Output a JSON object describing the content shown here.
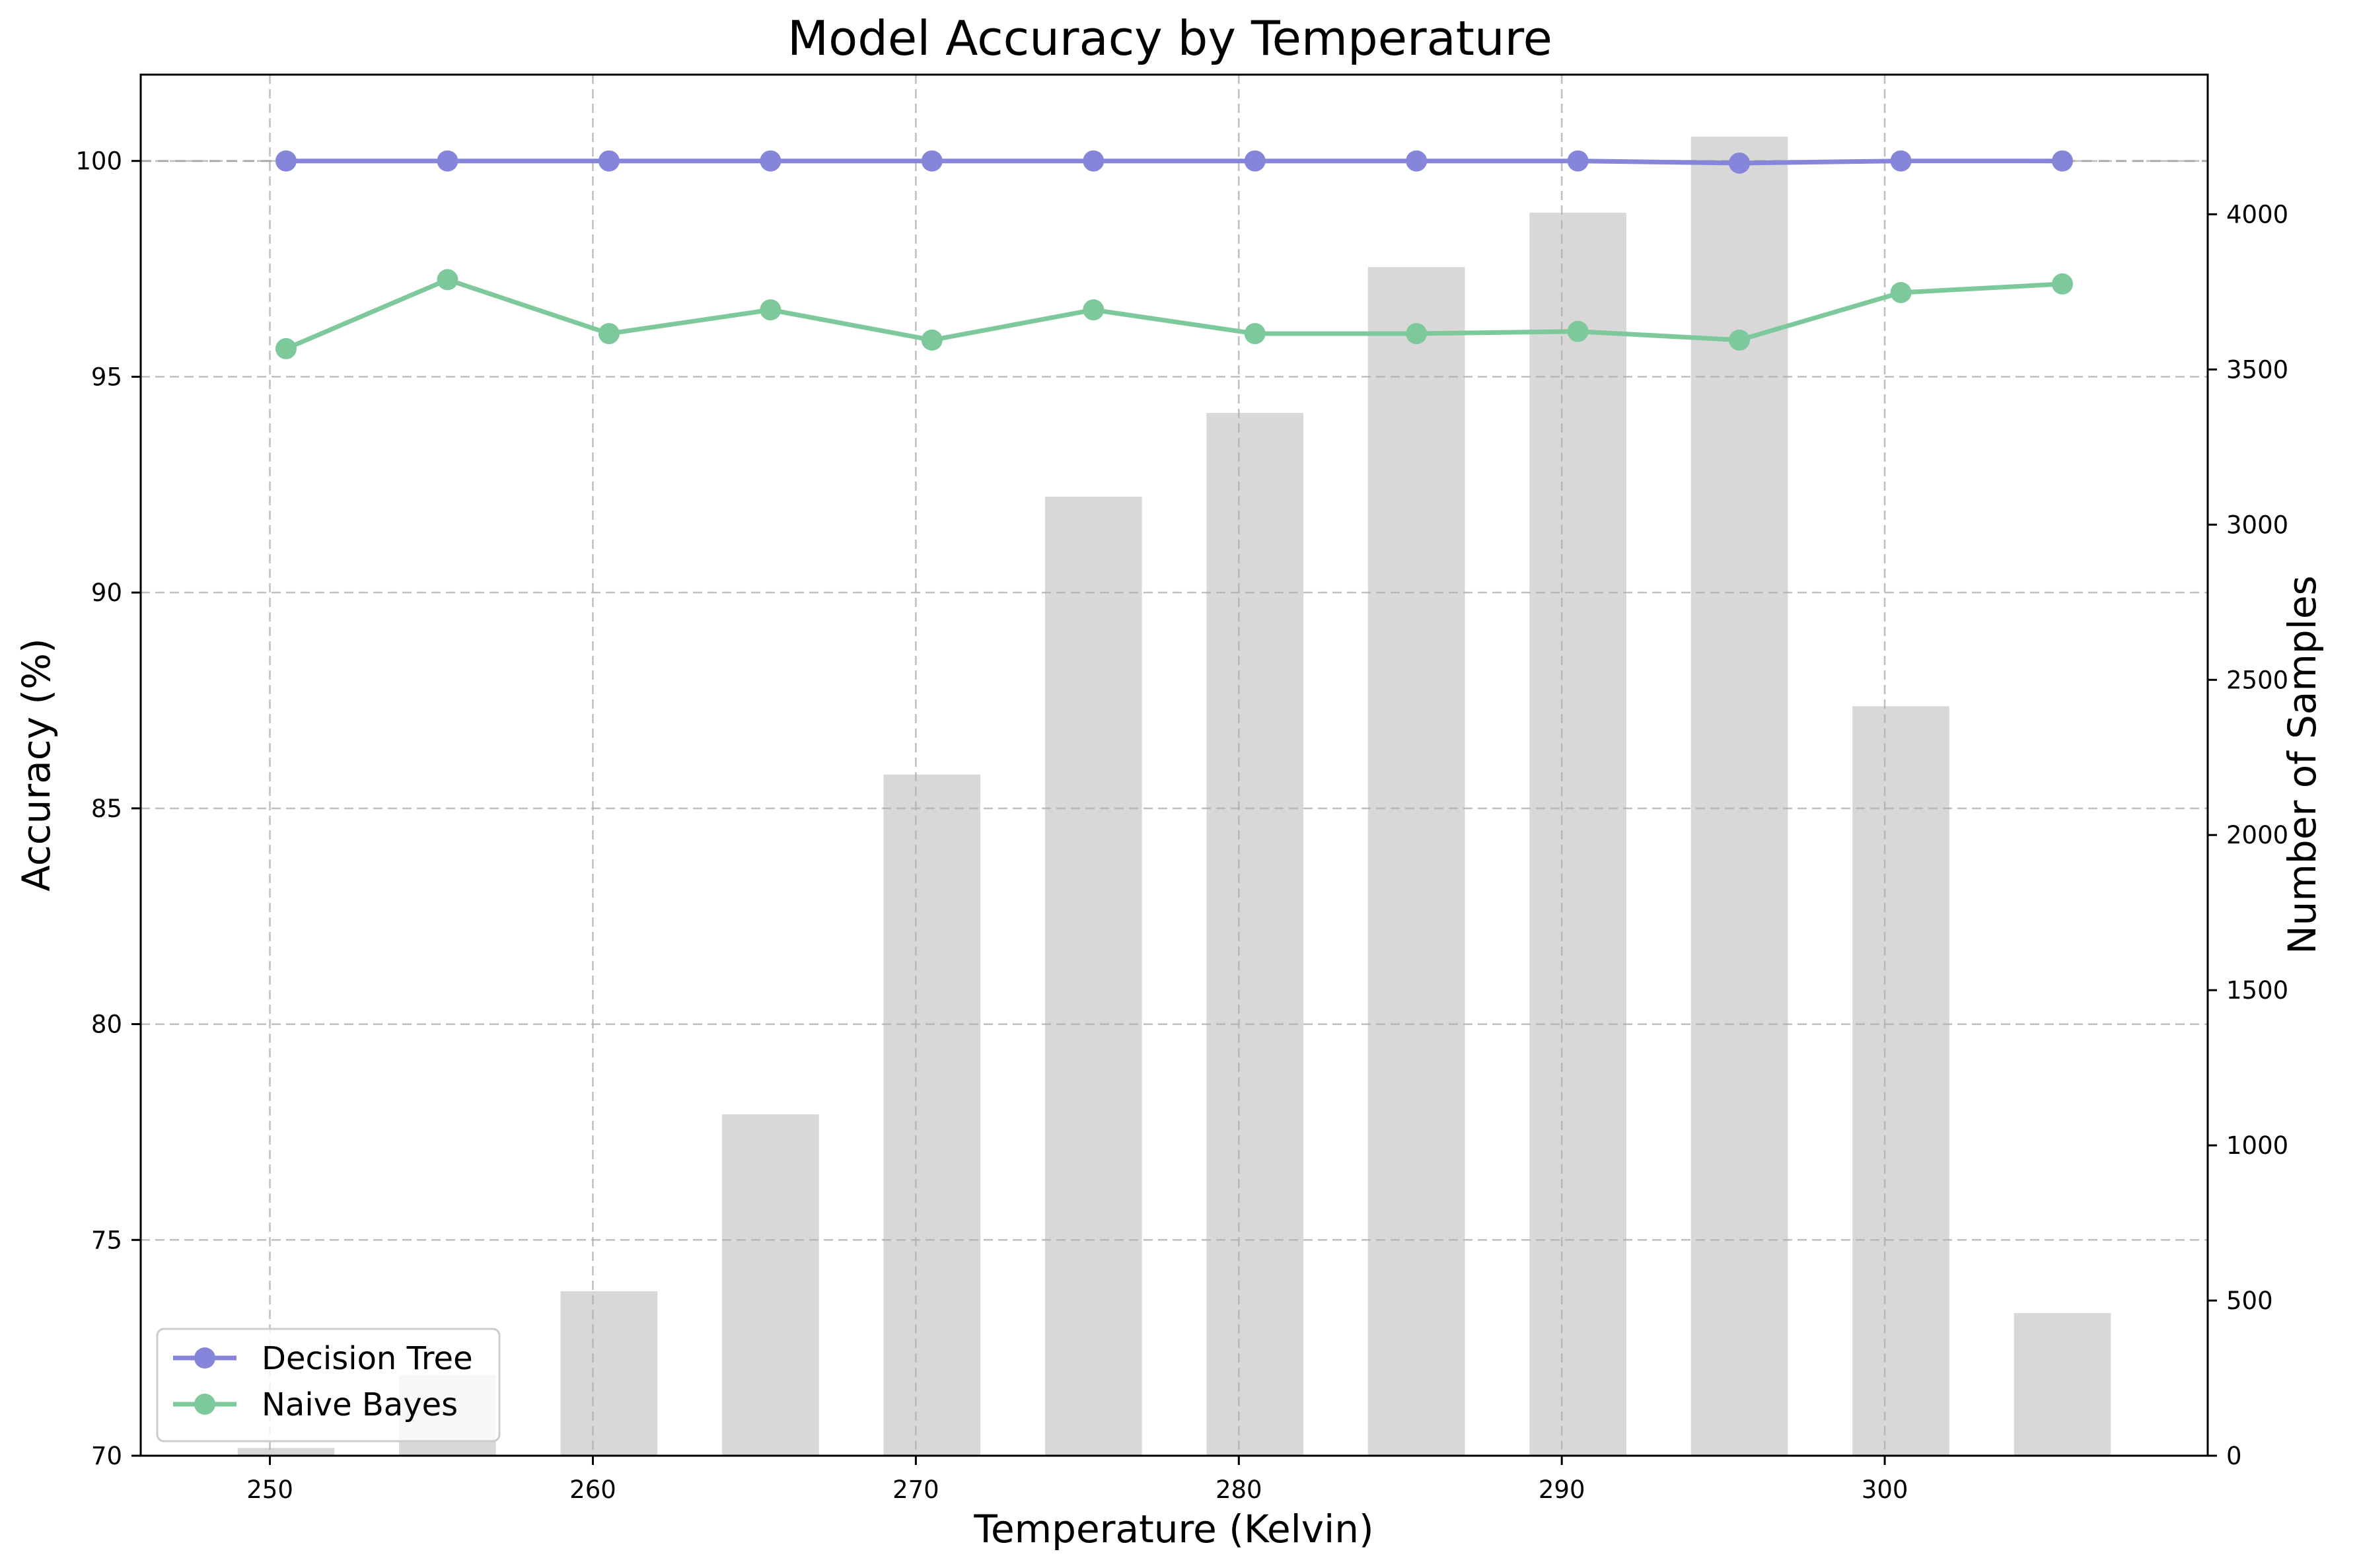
{
  "chart_data": {
    "type": "bar+line",
    "title": "Model Accuracy by Temperature",
    "xlabel": "Temperature (Kelvin)",
    "ylabel": "Accuracy (%)",
    "y2label": "Number of Samples",
    "xlim": [
      246,
      310
    ],
    "ylim": [
      70,
      102
    ],
    "y2lim": [
      0,
      4450
    ],
    "xticks": [
      250,
      260,
      270,
      280,
      290,
      300
    ],
    "yticks": [
      70,
      75,
      80,
      85,
      90,
      95,
      100
    ],
    "y2ticks": [
      0,
      500,
      1000,
      1500,
      2000,
      2500,
      3000,
      3500,
      4000
    ],
    "grid": true,
    "legend_position": "lower-left",
    "bar_color": "#d8d8d8",
    "bars": {
      "name": "Number of Samples",
      "x": [
        250.5,
        255.5,
        260.5,
        265.5,
        270.5,
        275.5,
        280.5,
        285.5,
        290.5,
        295.5,
        300.5,
        305.5
      ],
      "values": [
        25,
        260,
        530,
        1100,
        2195,
        3090,
        3360,
        3830,
        4005,
        4250,
        2415,
        460
      ],
      "width": 3
    },
    "series": [
      {
        "name": "Decision Tree",
        "color": "#8585d9",
        "x": [
          250.5,
          255.5,
          260.5,
          265.5,
          270.5,
          275.5,
          280.5,
          285.5,
          290.5,
          295.5,
          300.5,
          305.5
        ],
        "values": [
          100,
          100,
          100,
          100,
          100,
          100,
          100,
          100,
          100,
          99.95,
          100,
          100
        ]
      },
      {
        "name": "Naive Bayes",
        "color": "#7ec99b",
        "x": [
          250.5,
          255.5,
          260.5,
          265.5,
          270.5,
          275.5,
          280.5,
          285.5,
          290.5,
          295.5,
          300.5,
          305.5
        ],
        "values": [
          95.65,
          97.25,
          96.0,
          96.55,
          95.85,
          96.55,
          96.0,
          96.0,
          96.05,
          95.85,
          96.95,
          97.15
        ]
      }
    ],
    "reference_line": {
      "y": 100,
      "color": "#aaaaaa"
    }
  }
}
